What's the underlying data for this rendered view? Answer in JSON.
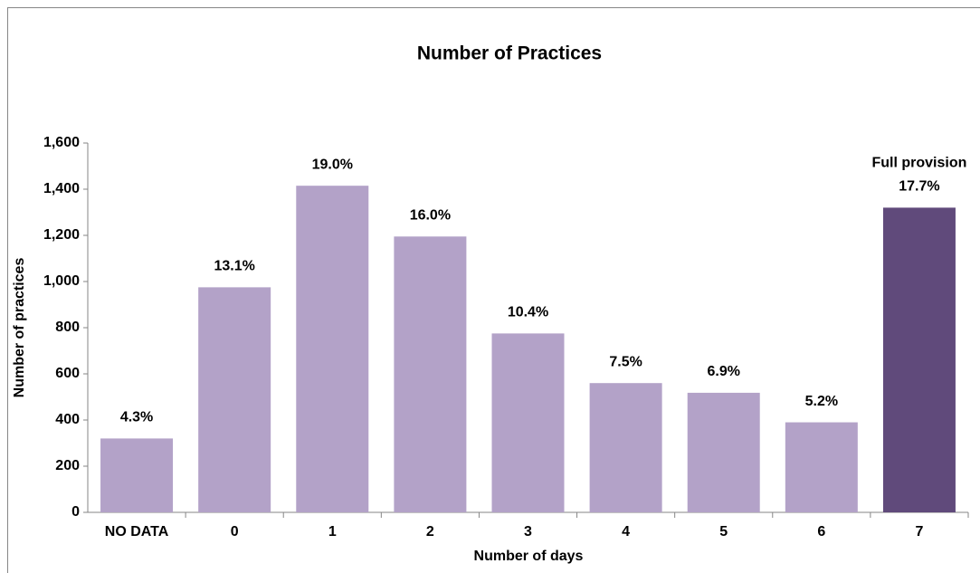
{
  "chart_data": {
    "type": "bar",
    "title": "Number of Practices",
    "x_label": "Number of days",
    "y_label": "Number of practices",
    "categories": [
      "NO DATA",
      "0",
      "1",
      "2",
      "3",
      "4",
      "5",
      "6",
      "7"
    ],
    "values": [
      320,
      975,
      1415,
      1195,
      775,
      560,
      518,
      390,
      1320
    ],
    "percent_labels": [
      "4.3%",
      "13.1%",
      "19.0%",
      "16.0%",
      "10.4%",
      "7.5%",
      "6.9%",
      "5.2%",
      "17.7%"
    ],
    "bar_notes": [
      null,
      null,
      null,
      null,
      null,
      null,
      null,
      null,
      "Full provision"
    ],
    "colors": [
      "#b3a2c8",
      "#b3a2c8",
      "#b3a2c8",
      "#b3a2c8",
      "#b3a2c8",
      "#b3a2c8",
      "#b3a2c8",
      "#b3a2c8",
      "#604a7b"
    ],
    "ylim": [
      0,
      1600
    ],
    "yticks": [
      0,
      200,
      400,
      600,
      800,
      {
        "value": 1000,
        "label": "1,000"
      },
      {
        "value": 1200,
        "label": "1,200"
      },
      {
        "value": 1400,
        "label": "1,400"
      },
      {
        "value": 1600,
        "label": "1,600"
      }
    ],
    "grid": false
  }
}
